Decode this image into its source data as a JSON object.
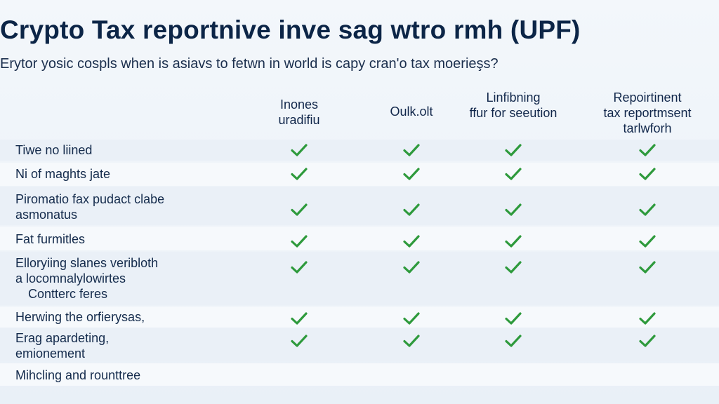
{
  "title": "Crypto Tax reportnive inve sag wtro rmh (UPF)",
  "subtitle": "Erytor yosic cospls when is asiavs to fetwn in world is capy cran'o tax moerieşs?",
  "columns": [
    {
      "lines": [
        "Inones",
        "uradifiu"
      ]
    },
    {
      "lines": [
        "Oulk.olt"
      ]
    },
    {
      "lines": [
        "Linfibning",
        "ffur for seeution"
      ]
    },
    {
      "lines": [
        "Repoirtinent",
        "tax reportmsent",
        "tarlwforh"
      ]
    }
  ],
  "rows": [
    {
      "lines": [
        "Tiwe no liined"
      ],
      "checks": [
        true,
        true,
        true,
        true
      ]
    },
    {
      "lines": [
        "Ni of maghts jate"
      ],
      "checks": [
        true,
        true,
        true,
        true
      ]
    },
    {
      "lines": [
        "Piromatio fax pudact clabe",
        "asmonatus"
      ],
      "checks": [
        true,
        true,
        true,
        true
      ]
    },
    {
      "lines": [
        "Fat furmitles"
      ],
      "checks": [
        true,
        true,
        true,
        true
      ]
    },
    {
      "lines": [
        "Elloryiing slanes veribloth",
        "a locomnalylowirtes",
        "Contterc feres"
      ],
      "checks": [
        true,
        true,
        true,
        true
      ]
    },
    {
      "lines": [
        "Herwing the orfierysas,"
      ],
      "checks": [
        true,
        true,
        true,
        true
      ]
    },
    {
      "lines": [
        "Erag apardeting,",
        "emionement"
      ],
      "checks": [
        true,
        true,
        true,
        true
      ]
    },
    {
      "lines": [
        "Mihcling and rounttree"
      ],
      "checks": [
        false,
        false,
        false,
        false
      ]
    }
  ],
  "colors": {
    "check": "#2e9a3c",
    "title": "#0c2547",
    "stripe": "#eaf0f7"
  },
  "icons": {
    "check": "check-icon"
  }
}
